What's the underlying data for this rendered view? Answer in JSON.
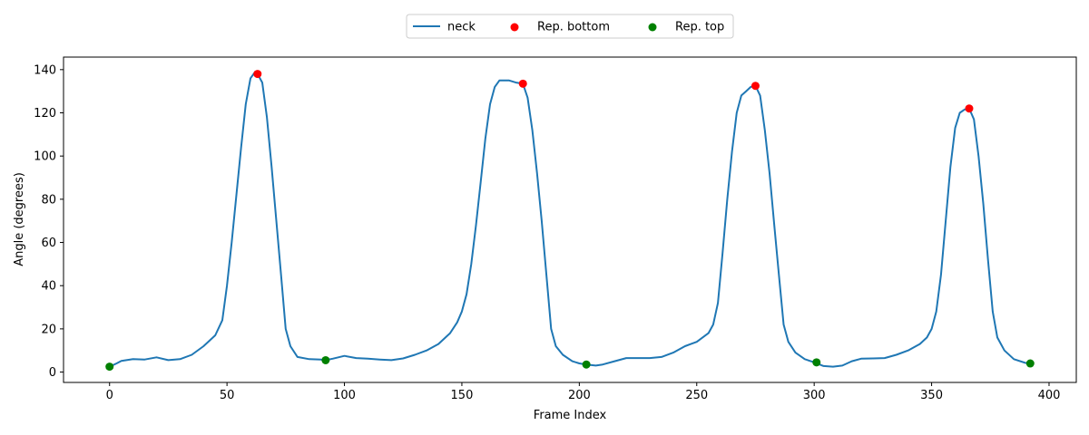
{
  "chart_data": {
    "type": "line",
    "xlabel": "Frame Index",
    "ylabel": "Angle (degrees)",
    "xlim": [
      -19.6,
      411.6
    ],
    "ylim": [
      -4.8,
      145.8
    ],
    "xticks": [
      0,
      50,
      100,
      150,
      200,
      250,
      300,
      350,
      400
    ],
    "yticks": [
      0,
      20,
      40,
      60,
      80,
      100,
      120,
      140
    ],
    "grid": false,
    "legend": {
      "position": "top-center",
      "entries": [
        "neck",
        "Rep. bottom",
        "Rep. top"
      ]
    },
    "series": [
      {
        "name": "neck",
        "kind": "line",
        "color": "#1f77b4",
        "points": [
          [
            0,
            2.5
          ],
          [
            3,
            4
          ],
          [
            5,
            5.2
          ],
          [
            10,
            6
          ],
          [
            15,
            5.8
          ],
          [
            20,
            6.8
          ],
          [
            25,
            5.5
          ],
          [
            30,
            6
          ],
          [
            35,
            8
          ],
          [
            40,
            12
          ],
          [
            45,
            17
          ],
          [
            48,
            24
          ],
          [
            50,
            40
          ],
          [
            52,
            60
          ],
          [
            54,
            82
          ],
          [
            56,
            104
          ],
          [
            58,
            124
          ],
          [
            60,
            136
          ],
          [
            62,
            139
          ],
          [
            63,
            138
          ],
          [
            65,
            134
          ],
          [
            67,
            118
          ],
          [
            69,
            95
          ],
          [
            71,
            70
          ],
          [
            73,
            45
          ],
          [
            75,
            20
          ],
          [
            77,
            12
          ],
          [
            80,
            7
          ],
          [
            85,
            6
          ],
          [
            90,
            5.8
          ],
          [
            92,
            5.5
          ],
          [
            95,
            6.2
          ],
          [
            100,
            7.5
          ],
          [
            105,
            6.5
          ],
          [
            110,
            6.2
          ],
          [
            115,
            5.8
          ],
          [
            120,
            5.5
          ],
          [
            125,
            6.3
          ],
          [
            130,
            8
          ],
          [
            135,
            10
          ],
          [
            140,
            13
          ],
          [
            145,
            18
          ],
          [
            148,
            23
          ],
          [
            150,
            28
          ],
          [
            152,
            36
          ],
          [
            154,
            50
          ],
          [
            156,
            68
          ],
          [
            158,
            88
          ],
          [
            160,
            108
          ],
          [
            162,
            124
          ],
          [
            164,
            132
          ],
          [
            166,
            135
          ],
          [
            170,
            135
          ],
          [
            173,
            134
          ],
          [
            176,
            133.5
          ],
          [
            178,
            127
          ],
          [
            180,
            112
          ],
          [
            182,
            92
          ],
          [
            184,
            70
          ],
          [
            186,
            45
          ],
          [
            188,
            20
          ],
          [
            190,
            12
          ],
          [
            193,
            8
          ],
          [
            197,
            5
          ],
          [
            200,
            4
          ],
          [
            203,
            3.5
          ],
          [
            207,
            3
          ],
          [
            210,
            3.5
          ],
          [
            215,
            5
          ],
          [
            220,
            6.5
          ],
          [
            225,
            6.5
          ],
          [
            230,
            6.5
          ],
          [
            235,
            7
          ],
          [
            240,
            9
          ],
          [
            245,
            12
          ],
          [
            250,
            14
          ],
          [
            255,
            18
          ],
          [
            257,
            22
          ],
          [
            259,
            32
          ],
          [
            261,
            55
          ],
          [
            263,
            80
          ],
          [
            265,
            102
          ],
          [
            267,
            120
          ],
          [
            269,
            128
          ],
          [
            271,
            130
          ],
          [
            273,
            132
          ],
          [
            275,
            132.5
          ],
          [
            277,
            128
          ],
          [
            279,
            112
          ],
          [
            281,
            92
          ],
          [
            283,
            68
          ],
          [
            285,
            45
          ],
          [
            287,
            22
          ],
          [
            289,
            14
          ],
          [
            292,
            9
          ],
          [
            296,
            6
          ],
          [
            300,
            4.5
          ],
          [
            304,
            2.8
          ],
          [
            308,
            2.5
          ],
          [
            312,
            3
          ],
          [
            316,
            5
          ],
          [
            320,
            6.2
          ],
          [
            325,
            6.3
          ],
          [
            330,
            6.5
          ],
          [
            335,
            8
          ],
          [
            340,
            10
          ],
          [
            345,
            13
          ],
          [
            348,
            16
          ],
          [
            350,
            20
          ],
          [
            352,
            28
          ],
          [
            354,
            45
          ],
          [
            356,
            70
          ],
          [
            358,
            95
          ],
          [
            360,
            113
          ],
          [
            362,
            120
          ],
          [
            364,
            121.5
          ],
          [
            366,
            122
          ],
          [
            368,
            117
          ],
          [
            370,
            100
          ],
          [
            372,
            78
          ],
          [
            374,
            52
          ],
          [
            376,
            28
          ],
          [
            378,
            16
          ],
          [
            381,
            10
          ],
          [
            385,
            6
          ],
          [
            390,
            4.2
          ],
          [
            392,
            4
          ]
        ]
      },
      {
        "name": "Rep. bottom",
        "kind": "scatter",
        "color": "#ff0000",
        "points": [
          [
            63,
            138
          ],
          [
            176,
            133.5
          ],
          [
            275,
            132.5
          ],
          [
            366,
            122
          ]
        ]
      },
      {
        "name": "Rep. top",
        "kind": "scatter",
        "color": "#008000",
        "points": [
          [
            0,
            2.5
          ],
          [
            92,
            5.5
          ],
          [
            203,
            3.5
          ],
          [
            301,
            4.5
          ],
          [
            392,
            4
          ]
        ]
      }
    ]
  }
}
